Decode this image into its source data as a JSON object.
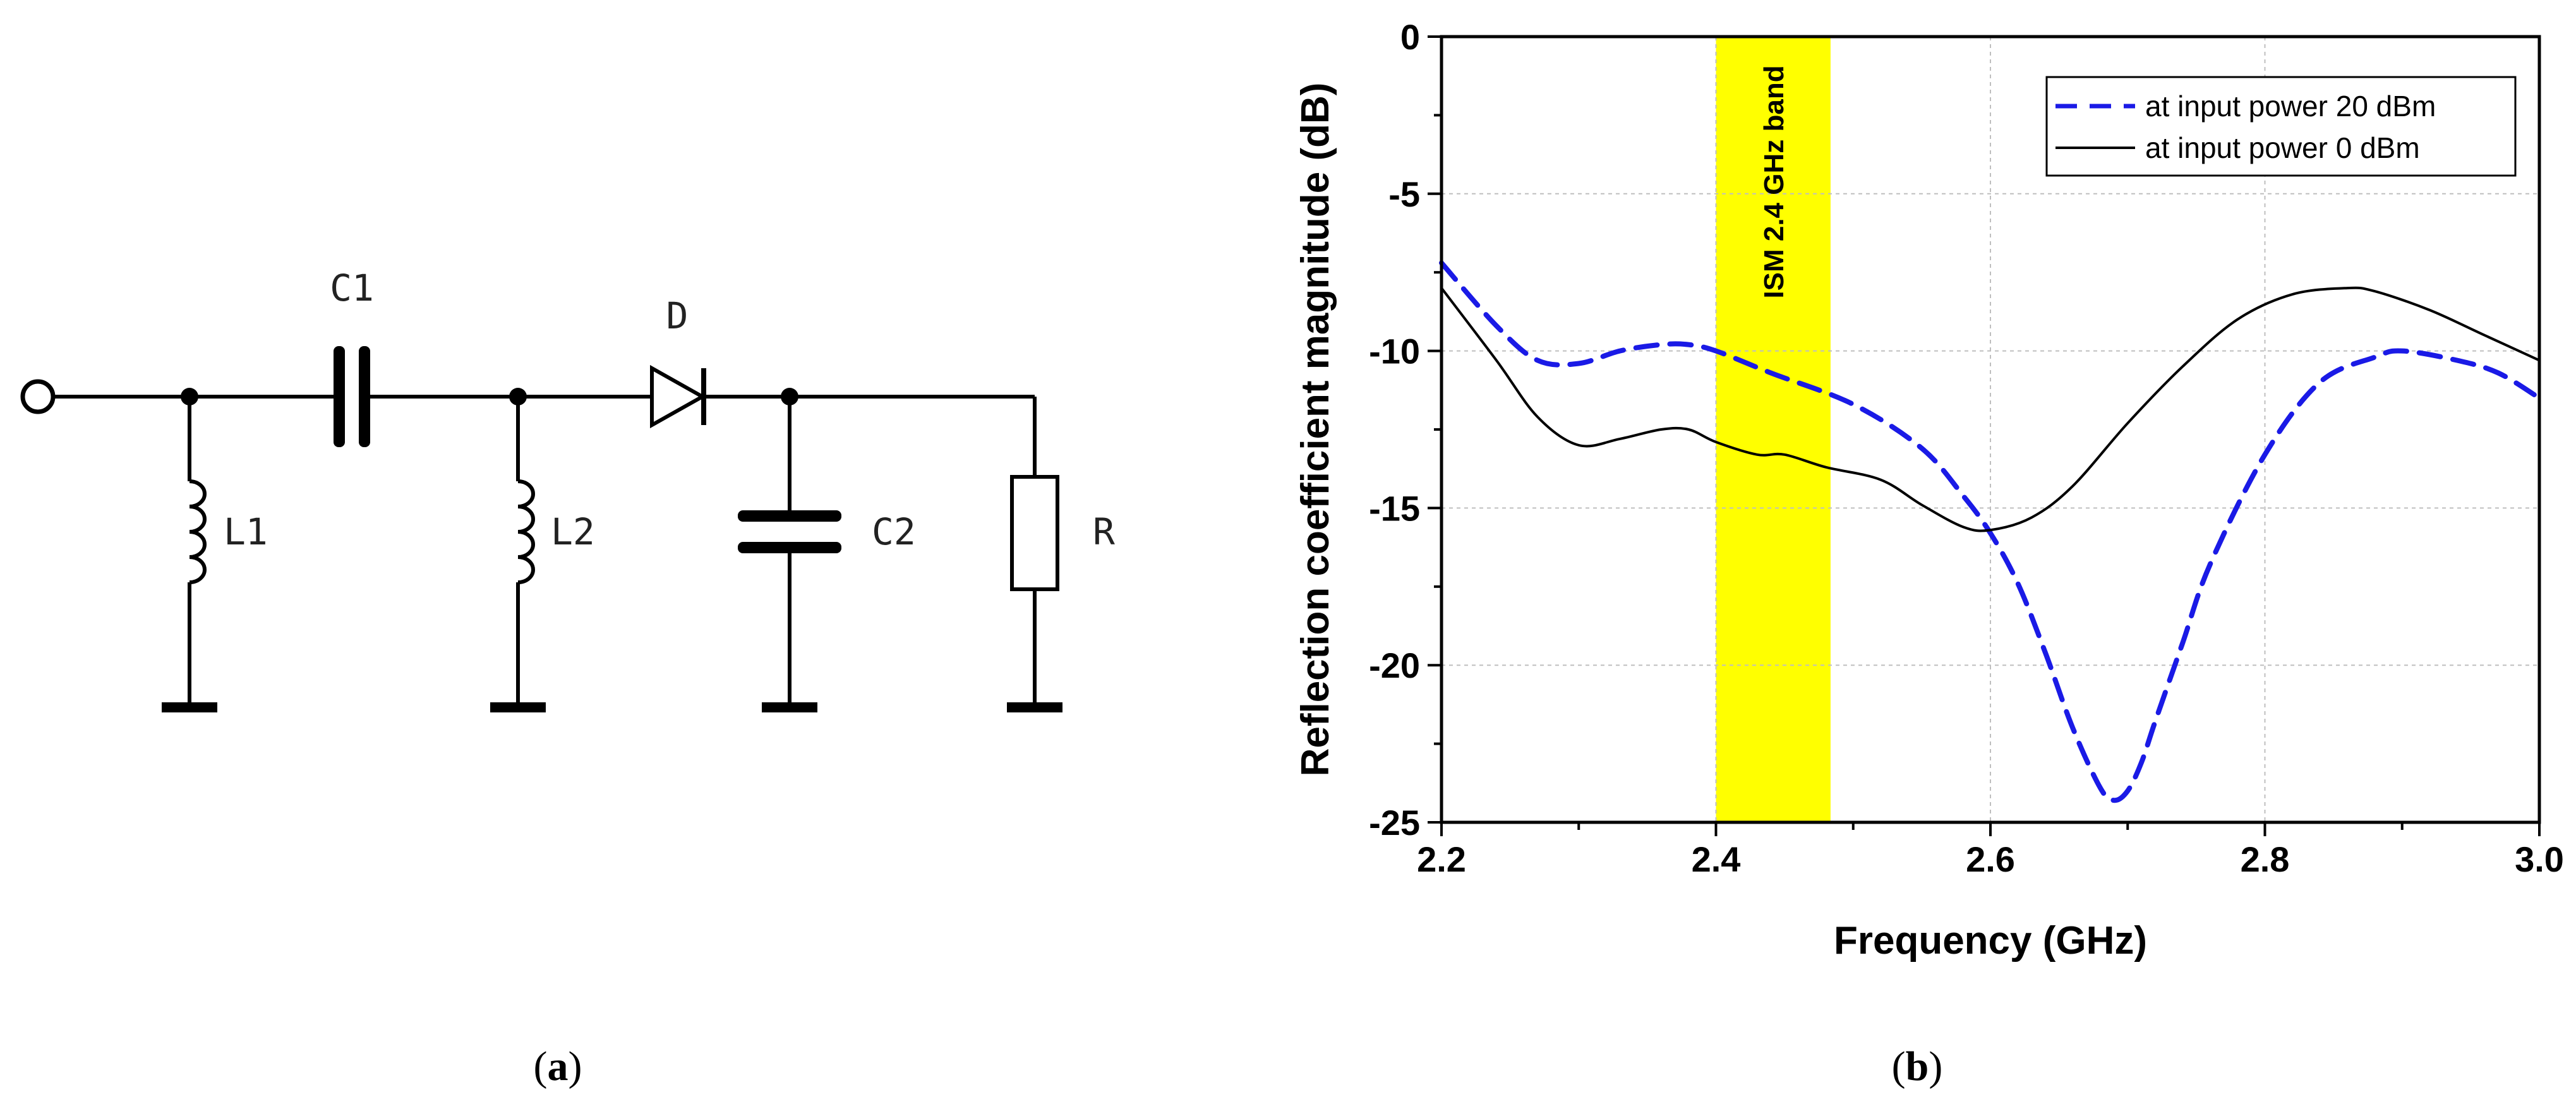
{
  "panel_a": {
    "caption_label": "a",
    "components": {
      "c1": "C1",
      "d": "D",
      "l1": "L1",
      "l2": "L2",
      "c2": "C2",
      "r": "R"
    }
  },
  "panel_b": {
    "caption_label": "b"
  },
  "colors": {
    "series_20dbm": "#1a1ae6",
    "series_0dbm": "#000000",
    "band": "#ffff00",
    "grid": "#bfbfbf"
  },
  "chart_data": {
    "type": "line",
    "title": "",
    "xlabel": "Frequency (GHz)",
    "ylabel": "Reflection coefficient magnitude (dB)",
    "xlim": [
      2.2,
      3.0
    ],
    "ylim": [
      -25,
      0
    ],
    "xticks": [
      2.2,
      2.4,
      2.6,
      2.8,
      3.0
    ],
    "xtick_labels": [
      "2.2",
      "2.4",
      "2.6",
      "2.8",
      "3.0"
    ],
    "yticks": [
      0,
      -5,
      -10,
      -15,
      -20,
      -25
    ],
    "ytick_labels": [
      "0",
      "-5",
      "-10",
      "-15",
      "-20",
      "-25"
    ],
    "grid": true,
    "legend_position": "top-right",
    "annotation": {
      "text": "ISM 2.4 GHz band",
      "x_range": [
        2.4,
        2.4835
      ]
    },
    "series": [
      {
        "name": "at input power 20 dBm",
        "style": "dashed",
        "x": [
          2.2,
          2.24,
          2.27,
          2.3,
          2.33,
          2.36,
          2.38,
          2.4,
          2.44,
          2.5,
          2.55,
          2.58,
          2.6,
          2.62,
          2.64,
          2.66,
          2.68,
          2.69,
          2.7,
          2.71,
          2.72,
          2.74,
          2.76,
          2.8,
          2.84,
          2.88,
          2.9,
          2.94,
          2.97,
          3.0
        ],
        "y": [
          -7.2,
          -9.2,
          -10.3,
          -10.4,
          -10.0,
          -9.8,
          -9.8,
          -10.0,
          -10.7,
          -11.7,
          -13.1,
          -14.6,
          -15.8,
          -17.4,
          -19.6,
          -22.0,
          -23.9,
          -24.3,
          -24.0,
          -23.1,
          -21.8,
          -19.3,
          -16.8,
          -13.3,
          -11.0,
          -10.2,
          -10.0,
          -10.3,
          -10.7,
          -11.5
        ]
      },
      {
        "name": "at input power 0 dBm",
        "style": "solid",
        "x": [
          2.2,
          2.24,
          2.27,
          2.3,
          2.33,
          2.36,
          2.38,
          2.4,
          2.43,
          2.45,
          2.48,
          2.52,
          2.55,
          2.58,
          2.6,
          2.63,
          2.66,
          2.7,
          2.74,
          2.78,
          2.82,
          2.86,
          2.88,
          2.92,
          2.96,
          3.0
        ],
        "y": [
          -8.0,
          -10.3,
          -12.1,
          -13.0,
          -12.8,
          -12.5,
          -12.5,
          -12.9,
          -13.3,
          -13.3,
          -13.7,
          -14.1,
          -14.9,
          -15.6,
          -15.7,
          -15.3,
          -14.3,
          -12.3,
          -10.5,
          -9.0,
          -8.2,
          -8.0,
          -8.1,
          -8.7,
          -9.5,
          -10.3
        ]
      }
    ]
  }
}
